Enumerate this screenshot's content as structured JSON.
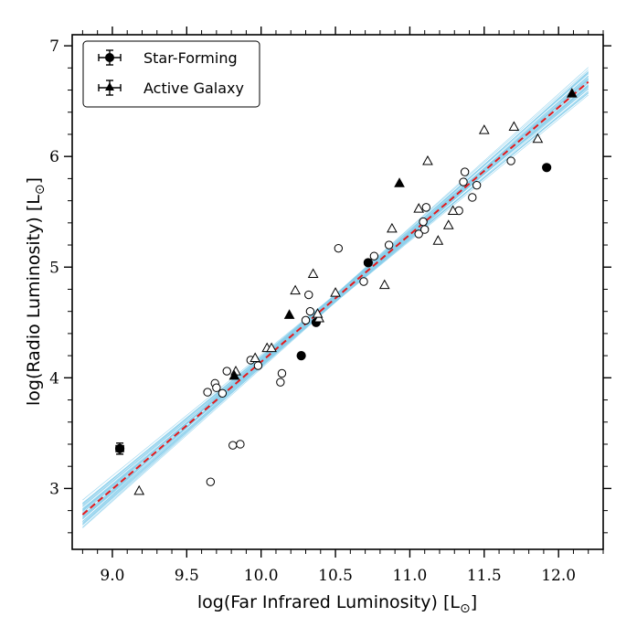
{
  "chart_data": {
    "type": "scatter",
    "title": "",
    "xlabel": "log(Far Infrared Luminosity) [L",
    "ylabel": "log(Radio Luminosity) [L",
    "xlabel_suffix": "]",
    "ylabel_suffix": "]",
    "sun_symbol": "⊙",
    "xlim": [
      8.73,
      12.3
    ],
    "ylim": [
      2.45,
      7.1
    ],
    "x_ticks": [
      9.0,
      9.5,
      10.0,
      10.5,
      11.0,
      11.5,
      12.0
    ],
    "x_tick_labels": [
      "9.0",
      "9.5",
      "10.0",
      "10.5",
      "11.0",
      "11.5",
      "12.0"
    ],
    "y_ticks": [
      3,
      4,
      5,
      6,
      7
    ],
    "y_tick_labels": [
      "3",
      "4",
      "5",
      "6",
      "7"
    ],
    "grid": false,
    "legend": {
      "position": "top-left",
      "entries": [
        {
          "label": "Star-Forming",
          "marker": "circle"
        },
        {
          "label": "Active Galaxy",
          "marker": "triangle"
        }
      ]
    },
    "fit": {
      "slope": 1.15,
      "intercept": -7.356,
      "x_range": [
        8.8,
        12.2
      ],
      "line_color": "#e41a1c",
      "band_color": "#87ceeb",
      "band_lines": 40
    },
    "series": [
      {
        "name": "Star-Forming",
        "marker": "circle",
        "fill": "open",
        "x": [
          9.64,
          9.69,
          9.7,
          9.74,
          9.77,
          9.81,
          9.86,
          9.93,
          9.98,
          10.13,
          10.14,
          10.3,
          10.32,
          10.33,
          10.52,
          10.69,
          10.76,
          10.86,
          11.06,
          11.09,
          11.1,
          11.11,
          11.33,
          11.36,
          11.37,
          11.42,
          11.45,
          11.68,
          9.66
        ],
        "y": [
          3.87,
          3.95,
          3.91,
          3.86,
          4.06,
          3.39,
          3.4,
          4.16,
          4.11,
          3.96,
          4.04,
          4.52,
          4.75,
          4.6,
          5.17,
          4.87,
          5.1,
          5.2,
          5.3,
          5.41,
          5.34,
          5.54,
          5.51,
          5.77,
          5.86,
          5.63,
          5.74,
          5.96,
          3.06
        ]
      },
      {
        "name": "Star-Forming (filled)",
        "marker": "circle",
        "fill": "filled",
        "x": [
          9.05,
          10.27,
          10.37,
          10.72,
          11.92
        ],
        "y": [
          3.36,
          4.2,
          4.5,
          5.04,
          5.9
        ],
        "x_err": [
          0.025,
          0,
          0,
          0,
          0
        ],
        "y_err": [
          0.05,
          0,
          0,
          0,
          0
        ]
      },
      {
        "name": "Active Galaxy",
        "marker": "triangle",
        "fill": "open",
        "x": [
          9.18,
          9.83,
          9.96,
          10.04,
          10.07,
          10.23,
          10.35,
          10.39,
          10.5,
          10.83,
          10.88,
          11.06,
          11.12,
          11.19,
          11.26,
          11.29,
          11.5,
          11.7,
          11.86,
          10.38
        ],
        "y": [
          2.98,
          4.06,
          4.18,
          4.27,
          4.27,
          4.79,
          4.94,
          4.54,
          4.77,
          4.84,
          5.35,
          5.53,
          5.96,
          5.24,
          5.38,
          5.51,
          6.24,
          6.27,
          6.16,
          4.58
        ]
      },
      {
        "name": "Active Galaxy (filled)",
        "marker": "triangle",
        "fill": "filled",
        "x": [
          9.82,
          10.19,
          10.93,
          12.09
        ],
        "y": [
          4.02,
          4.57,
          5.76,
          6.57
        ]
      }
    ]
  }
}
